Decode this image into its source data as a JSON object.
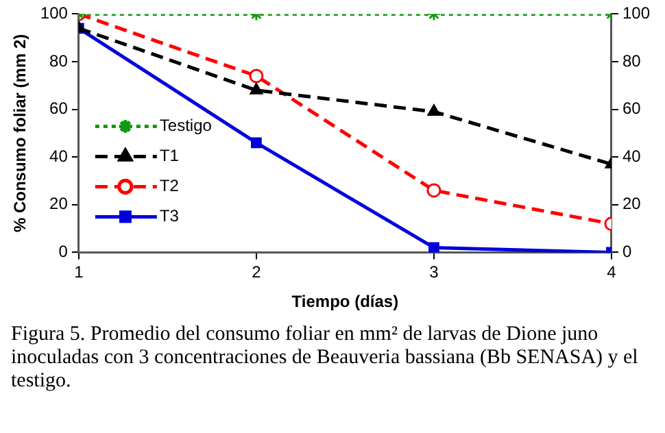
{
  "chart_data": {
    "type": "line",
    "xlabel": "Tiempo (días)",
    "ylabel": "% Consumo foliar (mm 2)",
    "x": [
      1,
      2,
      3,
      4
    ],
    "xlim": [
      1,
      4
    ],
    "xticks": [
      1,
      2,
      3,
      4
    ],
    "ylim": [
      0,
      100
    ],
    "yticks": [
      0,
      20,
      40,
      60,
      80,
      100
    ],
    "y2lim": [
      0,
      100
    ],
    "y2ticks": [
      0,
      20,
      40,
      60,
      80,
      100
    ],
    "grid": false,
    "legend": "left",
    "series": [
      {
        "name": "Testigo",
        "color": "#119911",
        "values": [
          100,
          100,
          100,
          100
        ],
        "marker": "cross",
        "line_style": "dotted"
      },
      {
        "name": "T1",
        "color": "#000000",
        "values": [
          94,
          68,
          59,
          37
        ],
        "marker": "triangle",
        "line_style": "dashed"
      },
      {
        "name": "T2",
        "color": "#ff0000",
        "values": [
          100,
          74,
          26,
          12
        ],
        "marker": "circle",
        "line_style": "dashed"
      },
      {
        "name": "T3",
        "color": "#0000dd",
        "values": [
          94,
          46,
          2,
          0
        ],
        "marker": "square",
        "line_style": "solid"
      }
    ],
    "annotations": [
      "Figura 5. Promedio del consumo foliar en mm² de larvas de Dione juno inoculadas con 3 concentraciones de Beauveria bassiana (Bb SENASA) y el testigo."
    ]
  }
}
